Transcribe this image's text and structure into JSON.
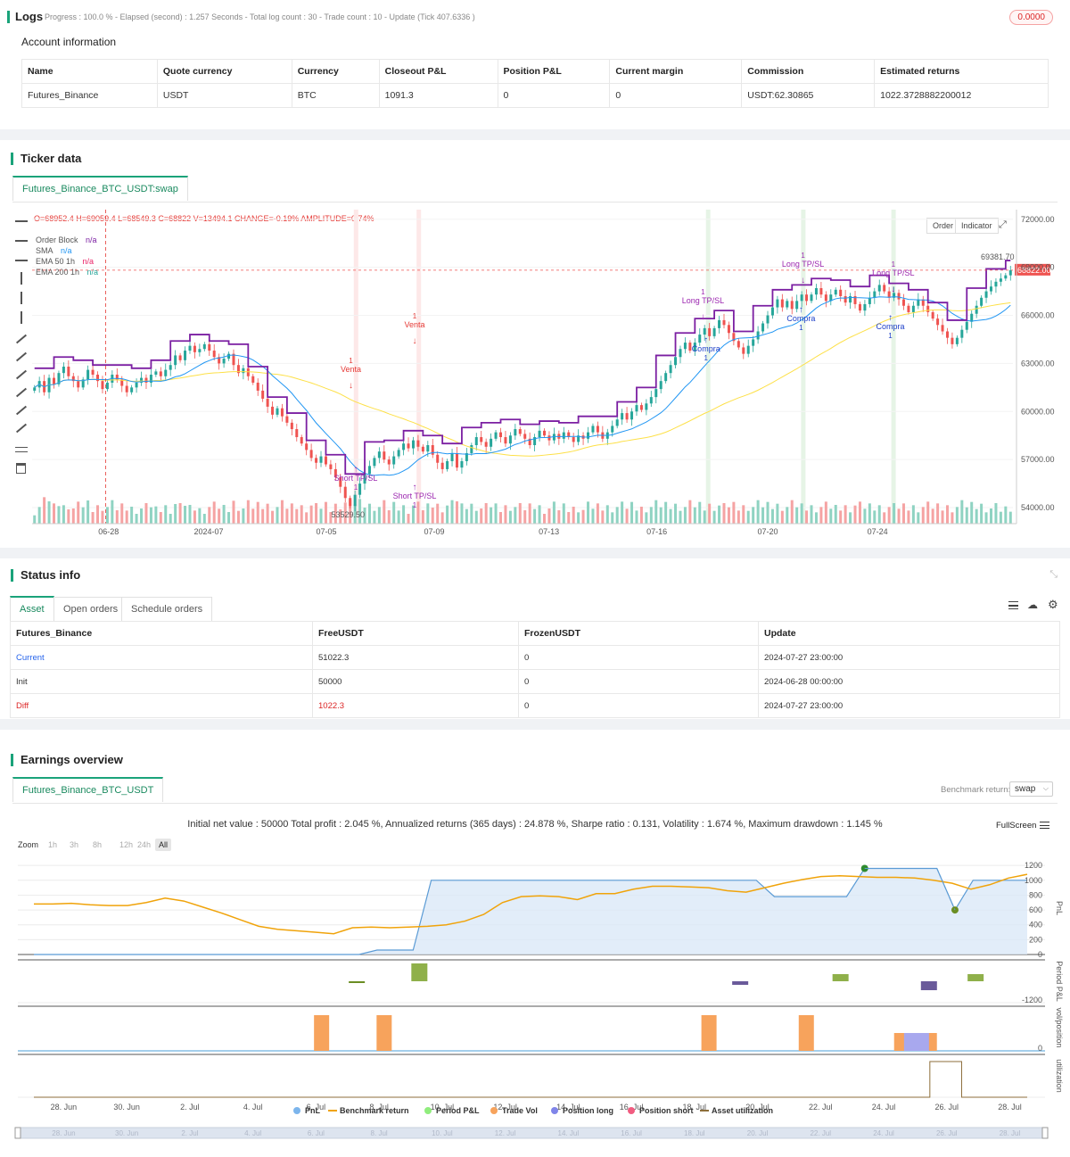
{
  "logs": {
    "title": "Logs",
    "progress": "Progress : 100.0 % - Elapsed (second) : 1.257  Seconds - Total log count : 30 - Trade count : 10 - Update (Tick 407.6336 )",
    "badge": "0.0000"
  },
  "account": {
    "heading": "Account information",
    "columns": [
      "Name",
      "Quote currency",
      "Currency",
      "Closeout P&L",
      "Position P&L",
      "Current margin",
      "Commission",
      "Estimated returns"
    ],
    "row": [
      "Futures_Binance",
      "USDT",
      "BTC",
      "1091.3",
      "0",
      "0",
      "USDT:62.30865",
      "1022.3728882200012"
    ]
  },
  "ticker": {
    "heading": "Ticker data",
    "tab": "Futures_Binance_BTC_USDT:swap",
    "ohlc": "O=68952.4 H=69059.4 L=68549.3 C=68822 V=13494.1 CHANGE=-0.19% AMPLITUDE=0.74%",
    "legend": [
      {
        "name": "Order Block",
        "value": "n/a",
        "color": "#7b1fa2"
      },
      {
        "name": "SMA",
        "value": "n/a",
        "color": "#2196f3"
      },
      {
        "name": "EMA 50 1h",
        "value": "n/a",
        "color": "#e91e63"
      },
      {
        "name": "EMA 200 1h",
        "value": "n/a",
        "color": "#26a69a"
      }
    ],
    "buttons": {
      "order": "Order",
      "indicator": "Indicator"
    },
    "price_labels": [
      "72000.00",
      "69000.00",
      "66000.00",
      "63000.00",
      "60000.00",
      "57000.00",
      "54000.00"
    ],
    "last_price": "68822.00",
    "high_mark": "69381.70",
    "low_mark": "53529.50",
    "date_labels": [
      "06-28",
      "2024-07",
      "07-05",
      "07-09",
      "07-13",
      "07-16",
      "07-20",
      "07-24"
    ],
    "annotations": [
      {
        "text": "Venta",
        "color": "#e53935"
      },
      {
        "text": "Venta",
        "color": "#e53935"
      },
      {
        "text": "Short TP/SL",
        "color": "#9c27b0"
      },
      {
        "text": "Short TP/SL",
        "color": "#9c27b0"
      },
      {
        "text": "Long TP/SL",
        "color": "#9c27b0"
      },
      {
        "text": "Long TP/SL",
        "color": "#9c27b0"
      },
      {
        "text": "Long TP/SL",
        "color": "#9c27b0"
      },
      {
        "text": "Compra",
        "color": "#1e40c8"
      },
      {
        "text": "Compra",
        "color": "#1e40c8"
      },
      {
        "text": "Compra",
        "color": "#1e40c8"
      }
    ],
    "marker_count": "1",
    "chart_data": {
      "type": "candlestick",
      "y_range": [
        53000,
        72600
      ],
      "close": [
        61500,
        61900,
        61200,
        62100,
        61700,
        62400,
        62800,
        62200,
        61900,
        61500,
        62000,
        62600,
        62300,
        61900,
        61400,
        61800,
        62300,
        62000,
        61600,
        61200,
        61500,
        61800,
        62100,
        61800,
        62300,
        62500,
        62200,
        62600,
        62900,
        63500,
        63200,
        63800,
        64100,
        63700,
        63900,
        64200,
        63800,
        63400,
        63000,
        63300,
        63600,
        62900,
        62400,
        62700,
        62200,
        61800,
        61300,
        60800,
        60300,
        59800,
        60200,
        59700,
        59300,
        58900,
        58400,
        58000,
        57600,
        57100,
        56800,
        57200,
        56700,
        56400,
        55900,
        55300,
        54600,
        54100,
        54800,
        55500,
        56100,
        56600,
        57100,
        57500,
        57000,
        56700,
        57200,
        57600,
        58000,
        57700,
        58200,
        57800,
        57500,
        57900,
        57300,
        56800,
        56400,
        56900,
        57400,
        56500,
        56900,
        57400,
        57900,
        58400,
        58100,
        57800,
        58300,
        58700,
        58400,
        58000,
        58500,
        58900,
        58600,
        58300,
        57900,
        58400,
        58800,
        58500,
        58200,
        58600,
        58300,
        58700,
        58400,
        58100,
        58500,
        58300,
        58700,
        59100,
        58700,
        58300,
        58700,
        59100,
        59500,
        59900,
        59500,
        60000,
        60400,
        60100,
        60500,
        60900,
        61400,
        61900,
        62400,
        62900,
        63400,
        63900,
        64300,
        63800,
        64300,
        64800,
        65200,
        64700,
        65200,
        65700,
        65400,
        64900,
        64400,
        64000,
        63600,
        64100,
        64500,
        65000,
        65500,
        66000,
        66500,
        67000,
        66500,
        66900,
        66400,
        66900,
        67300,
        66900,
        67300,
        67700,
        67300,
        66900,
        67300,
        67600,
        67200,
        66800,
        67200,
        66700,
        66300,
        66700,
        67100,
        67500,
        67900,
        67500,
        67100,
        67400,
        67000,
        66600,
        66200,
        66600,
        67000,
        66600,
        66200,
        65800,
        65400,
        65000,
        64600,
        64200,
        64600,
        65100,
        65600,
        66100,
        66600,
        67100,
        67500,
        67800,
        68100,
        68300,
        68500,
        68822
      ]
    }
  },
  "status": {
    "heading": "Status info",
    "tabs": [
      "Asset",
      "Open orders",
      "Schedule orders"
    ],
    "columns": [
      "Futures_Binance",
      "FreeUSDT",
      "FrozenUSDT",
      "Update"
    ],
    "rows": [
      {
        "label": "Current",
        "free": "51022.3",
        "frozen": "0",
        "update": "2024-07-27 23:00:00",
        "color": "#2563eb"
      },
      {
        "label": "Init",
        "free": "50000",
        "frozen": "0",
        "update": "2024-06-28 00:00:00",
        "color": "#333"
      },
      {
        "label": "Diff",
        "free": "1022.3",
        "frozen": "0",
        "update": "2024-07-27 23:00:00",
        "color": "#dc2626"
      }
    ]
  },
  "earnings": {
    "heading": "Earnings overview",
    "tab": "Futures_Binance_BTC_USDT",
    "benchmark_label": "Benchmark return:",
    "benchmark_value": "swap",
    "summary": "Initial net value : 50000 Total profit : 2.045 %, Annualized returns (365 days) : 24.878 %, Sharpe ratio : 0.131, Volatility : 1.674 %, Maximum drawdown : 1.145 %",
    "fullscreen": "FullScreen",
    "zoom_label": "Zoom",
    "zoom_options": [
      "1h",
      "3h",
      "8h",
      "12h",
      "24h",
      "All"
    ],
    "pnl_ticks": [
      "1200",
      "1000",
      "800",
      "600",
      "400",
      "200",
      "0"
    ],
    "period_tick": "-1200",
    "vol_tick": "0",
    "axis_titles": {
      "pnl": "PnL",
      "period": "Period P&L",
      "vol": "vol/position",
      "util": "utilization"
    },
    "date_labels": [
      "28. Jun",
      "30. Jun",
      "2. Jul",
      "4. Jul",
      "6. Jul",
      "8. Jul",
      "10. Jul",
      "12. Jul",
      "14. Jul",
      "16. Jul",
      "18. Jul",
      "20. Jul",
      "22. Jul",
      "24. Jul",
      "26. Jul",
      "28. Jul"
    ],
    "legend": [
      {
        "name": "PnL",
        "color": "#7cb5ec"
      },
      {
        "name": "Benchmark return",
        "color": "#f0a30a"
      },
      {
        "name": "Period P&L",
        "color": "#90ed7d"
      },
      {
        "name": "Trade Vol",
        "color": "#f7a35c"
      },
      {
        "name": "Position long",
        "color": "#8085e9"
      },
      {
        "name": "Position short",
        "color": "#f15c80"
      },
      {
        "name": "Asset utilization",
        "color": "#8d6e3b"
      }
    ],
    "chart_data": {
      "type": "line",
      "pnl": [
        0,
        0,
        0,
        0,
        0,
        0,
        0,
        0,
        0,
        0,
        0,
        0,
        0,
        0,
        0,
        0,
        0,
        0,
        0,
        60,
        60,
        60,
        1000,
        1000,
        1000,
        1000,
        1000,
        1000,
        1000,
        1000,
        1000,
        1000,
        1000,
        1000,
        1000,
        1000,
        1000,
        1000,
        1000,
        1000,
        1000,
        780,
        780,
        780,
        780,
        780,
        1160,
        1160,
        1160,
        1160,
        1160,
        600,
        1000,
        1000,
        1000,
        1000
      ],
      "benchmark": [
        680,
        680,
        690,
        670,
        660,
        660,
        700,
        760,
        720,
        640,
        560,
        470,
        380,
        340,
        320,
        300,
        280,
        360,
        370,
        360,
        370,
        380,
        400,
        450,
        540,
        700,
        780,
        790,
        780,
        740,
        820,
        820,
        880,
        920,
        920,
        910,
        900,
        860,
        840,
        900,
        960,
        1010,
        1050,
        1060,
        1050,
        1040,
        1040,
        1030,
        1000,
        960,
        880,
        940,
        1030,
        1080
      ]
    }
  }
}
